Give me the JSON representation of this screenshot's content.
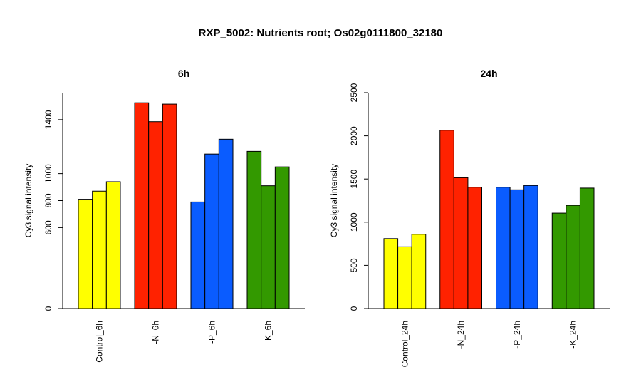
{
  "title": "RXP_5002: Nutrients root; Os02g0111800_32180",
  "chart_data": [
    {
      "type": "bar",
      "title": "6h",
      "ylabel": "Cy3 signal intensity",
      "ylim": [
        0,
        1600
      ],
      "yticks": [
        0,
        600,
        800,
        1000,
        1400
      ],
      "categories": [
        "Control_6h",
        "-N_6h",
        "-P_6h",
        "-K_6h"
      ],
      "colors": [
        "#ffff00",
        "#ff2200",
        "#0a5cff",
        "#339900"
      ],
      "values": [
        [
          810,
          870,
          940
        ],
        [
          1525,
          1385,
          1515
        ],
        [
          790,
          1145,
          1255
        ],
        [
          1165,
          910,
          1050
        ]
      ]
    },
    {
      "type": "bar",
      "title": "24h",
      "ylabel": "Cy3 signal intensity",
      "ylim": [
        0,
        2500
      ],
      "yticks": [
        0,
        500,
        1000,
        1500,
        2000,
        2500
      ],
      "categories": [
        "Control_24h",
        "-N_24h",
        "-P_24h",
        "-K_24h"
      ],
      "colors": [
        "#ffff00",
        "#ff2200",
        "#0a5cff",
        "#339900"
      ],
      "values": [
        [
          810,
          715,
          860
        ],
        [
          2065,
          1515,
          1405
        ],
        [
          1405,
          1375,
          1425
        ],
        [
          1105,
          1195,
          1395
        ]
      ]
    }
  ]
}
